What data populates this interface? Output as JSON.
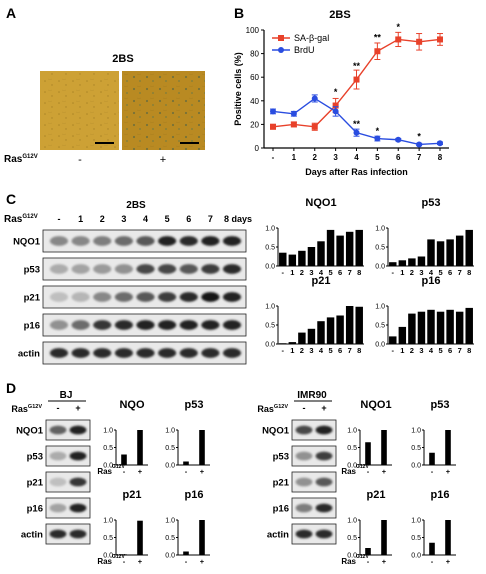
{
  "panelA": {
    "letter": "A",
    "title": "2BS",
    "row_label": "Ras",
    "row_label_sup": "G12V",
    "minus": "-",
    "plus": "+",
    "colors": {
      "image_bg": "#cda135",
      "image_bg_dark": "#b98a22"
    }
  },
  "panelB": {
    "letter": "B",
    "chart_data": {
      "type": "line",
      "title": "2BS",
      "xlabel": "Days after Ras infection",
      "ylabel": "Positive cells (%)",
      "x_ticks": [
        "-",
        "1",
        "2",
        "3",
        "4",
        "5",
        "6",
        "7",
        "8"
      ],
      "ylim": [
        0,
        100
      ],
      "y_ticks": [
        0,
        20,
        40,
        60,
        80,
        100
      ],
      "legend_position": "top-left",
      "series": [
        {
          "name": "SA-β-gal",
          "color": "#e8412a",
          "marker": "square",
          "values": [
            18,
            20,
            18,
            36,
            58,
            82,
            92,
            90,
            92
          ],
          "errors": [
            2,
            2,
            3,
            6,
            8,
            7,
            6,
            7,
            5
          ]
        },
        {
          "name": "BrdU",
          "color": "#2a4de0",
          "marker": "circle",
          "values": [
            31,
            29,
            42,
            31,
            13,
            8,
            7,
            3,
            4
          ],
          "errors": [
            2,
            2,
            3,
            4,
            3,
            2,
            1,
            1,
            1
          ]
        }
      ],
      "annotations": [
        {
          "x": 3,
          "y": 45,
          "text": "*"
        },
        {
          "x": 4,
          "y": 67,
          "text": "**"
        },
        {
          "x": 5,
          "y": 91,
          "text": "**"
        },
        {
          "x": 6,
          "y": 100,
          "text": "*"
        },
        {
          "x": 4,
          "y": 18,
          "text": "**"
        },
        {
          "x": 5,
          "y": 12,
          "text": "*"
        },
        {
          "x": 7,
          "y": 7,
          "text": "*"
        }
      ]
    }
  },
  "panelC": {
    "letter": "C",
    "title": "2BS",
    "ras_label": "Ras",
    "ras_sup": "G12V",
    "lane_labels": [
      "-",
      "1",
      "2",
      "3",
      "4",
      "5",
      "6",
      "7",
      "8 days"
    ],
    "blot_rows": [
      {
        "label": "NQO1",
        "intensity": [
          0.35,
          0.35,
          0.4,
          0.5,
          0.6,
          0.9,
          0.85,
          0.9,
          0.9
        ]
      },
      {
        "label": "p53",
        "intensity": [
          0.15,
          0.2,
          0.25,
          0.3,
          0.7,
          0.7,
          0.6,
          0.75,
          0.85
        ]
      },
      {
        "label": "p21",
        "intensity": [
          0.05,
          0.1,
          0.35,
          0.5,
          0.6,
          0.75,
          0.85,
          0.95,
          0.9
        ]
      },
      {
        "label": "p16",
        "intensity": [
          0.3,
          0.5,
          0.8,
          0.85,
          0.9,
          0.9,
          0.9,
          0.9,
          0.9
        ]
      },
      {
        "label": "actin",
        "intensity": [
          0.85,
          0.85,
          0.85,
          0.85,
          0.85,
          0.85,
          0.85,
          0.85,
          0.85
        ]
      }
    ],
    "chart_data": [
      {
        "type": "bar",
        "title": "NQO1",
        "categories": [
          "-",
          "1",
          "2",
          "3",
          "4",
          "5",
          "6",
          "7",
          "8"
        ],
        "ylim": [
          0,
          1.0
        ],
        "y_ticks": [
          "0.0",
          "0.5",
          "1.0"
        ],
        "values": [
          0.35,
          0.3,
          0.4,
          0.5,
          0.65,
          0.95,
          0.8,
          0.9,
          0.95
        ]
      },
      {
        "type": "bar",
        "title": "p53",
        "categories": [
          "-",
          "1",
          "2",
          "3",
          "4",
          "5",
          "6",
          "7",
          "8"
        ],
        "ylim": [
          0,
          1.0
        ],
        "y_ticks": [
          "0.0",
          "0.5",
          "1.0"
        ],
        "values": [
          0.1,
          0.15,
          0.2,
          0.25,
          0.7,
          0.65,
          0.7,
          0.8,
          0.95
        ]
      },
      {
        "type": "bar",
        "title": "p21",
        "categories": [
          "-",
          "1",
          "2",
          "3",
          "4",
          "5",
          "6",
          "7",
          "8"
        ],
        "ylim": [
          0,
          1.0
        ],
        "y_ticks": [
          "0.0",
          "0.5",
          "1.0"
        ],
        "values": [
          0.02,
          0.05,
          0.3,
          0.4,
          0.6,
          0.7,
          0.75,
          1.0,
          0.98
        ]
      },
      {
        "type": "bar",
        "title": "p16",
        "categories": [
          "-",
          "1",
          "2",
          "3",
          "4",
          "5",
          "6",
          "7",
          "8"
        ],
        "ylim": [
          0,
          1.0
        ],
        "y_ticks": [
          "0.0",
          "0.5",
          "1.0"
        ],
        "values": [
          0.2,
          0.45,
          0.8,
          0.85,
          0.9,
          0.85,
          0.9,
          0.85,
          0.95
        ]
      }
    ]
  },
  "panelD": {
    "letter": "D",
    "ras_label": "Ras",
    "ras_sup": "G12V",
    "left": {
      "cell_line": "BJ",
      "lane_labels": [
        "-",
        "+"
      ],
      "blot_rows": [
        {
          "label": "NQO1",
          "intensity": [
            0.55,
            0.9
          ]
        },
        {
          "label": "p53",
          "intensity": [
            0.15,
            0.9
          ]
        },
        {
          "label": "p21",
          "intensity": [
            0.05,
            0.8
          ]
        },
        {
          "label": "p16",
          "intensity": [
            0.2,
            0.9
          ]
        },
        {
          "label": "actin",
          "intensity": [
            0.85,
            0.85
          ]
        }
      ],
      "chart_data": [
        {
          "type": "bar",
          "title": "NQO",
          "categories": [
            "-",
            "+"
          ],
          "ylim": [
            0,
            1.0
          ],
          "y_ticks": [
            "0.0",
            "0.5",
            "1.0"
          ],
          "values": [
            0.3,
            1.0
          ]
        },
        {
          "type": "bar",
          "title": "p53",
          "categories": [
            "-",
            "+"
          ],
          "ylim": [
            0,
            1.0
          ],
          "y_ticks": [
            "0.0",
            "0.5",
            "1.0"
          ],
          "values": [
            0.1,
            1.0
          ]
        },
        {
          "type": "bar",
          "title": "p21",
          "categories": [
            "-",
            "+"
          ],
          "ylim": [
            0,
            1.0
          ],
          "y_ticks": [
            "0.0",
            "0.5",
            "1.0"
          ],
          "values": [
            0.02,
            0.98
          ]
        },
        {
          "type": "bar",
          "title": "p16",
          "categories": [
            "-",
            "+"
          ],
          "ylim": [
            0,
            1.0
          ],
          "y_ticks": [
            "0.0",
            "0.5",
            "1.0"
          ],
          "values": [
            0.1,
            1.0
          ]
        }
      ]
    },
    "right": {
      "cell_line": "IMR90",
      "lane_labels": [
        "-",
        "+"
      ],
      "blot_rows": [
        {
          "label": "NQO1",
          "intensity": [
            0.7,
            0.9
          ]
        },
        {
          "label": "p53",
          "intensity": [
            0.3,
            0.75
          ]
        },
        {
          "label": "p21",
          "intensity": [
            0.3,
            0.6
          ]
        },
        {
          "label": "p16",
          "intensity": [
            0.4,
            0.85
          ]
        },
        {
          "label": "actin",
          "intensity": [
            0.85,
            0.85
          ]
        }
      ],
      "chart_data": [
        {
          "type": "bar",
          "title": "NQO1",
          "categories": [
            "-",
            "+"
          ],
          "ylim": [
            0,
            1.0
          ],
          "y_ticks": [
            "0.0",
            "0.5",
            "1.0"
          ],
          "values": [
            0.65,
            1.0
          ]
        },
        {
          "type": "bar",
          "title": "p53",
          "categories": [
            "-",
            "+"
          ],
          "ylim": [
            0,
            1.0
          ],
          "y_ticks": [
            "0.0",
            "0.5",
            "1.0"
          ],
          "values": [
            0.35,
            1.0
          ]
        },
        {
          "type": "bar",
          "title": "p21",
          "categories": [
            "-",
            "+"
          ],
          "ylim": [
            0,
            1.0
          ],
          "y_ticks": [
            "0.0",
            "0.5",
            "1.0"
          ],
          "values": [
            0.2,
            1.0
          ]
        },
        {
          "type": "bar",
          "title": "p16",
          "categories": [
            "-",
            "+"
          ],
          "ylim": [
            0,
            1.0
          ],
          "y_ticks": [
            "0.0",
            "0.5",
            "1.0"
          ],
          "values": [
            0.35,
            1.0
          ]
        }
      ]
    }
  }
}
